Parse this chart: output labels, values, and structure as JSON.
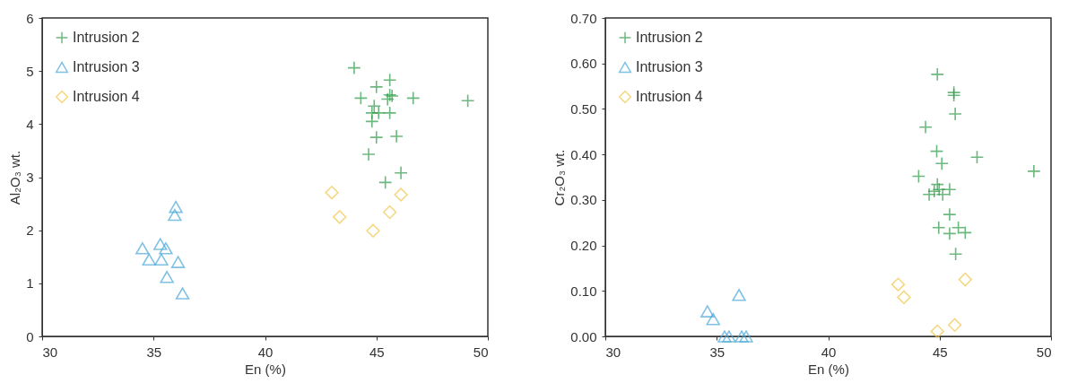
{
  "chart_data": [
    {
      "type": "scatter",
      "xlabel": "En (%)",
      "ylabel": "Al₂O₃ wt.",
      "xlim": [
        30,
        50
      ],
      "xticks": [
        30,
        35,
        40,
        45,
        50
      ],
      "ylim": [
        0,
        6
      ],
      "yticks": [
        0,
        1,
        2,
        3,
        4,
        5,
        6
      ],
      "grid": false,
      "legend": "top left",
      "series": [
        {
          "name": "Intrusion 2",
          "color": "#2e9b48",
          "marker": "cross",
          "x": [
            44.0,
            44.3,
            45.0,
            45.6,
            45.6,
            45.7,
            46.65,
            49.1,
            44.8,
            45.1,
            45.6,
            44.8,
            45.0,
            45.9,
            44.65,
            45.4,
            46.1,
            45.5,
            44.9
          ],
          "values": [
            5.06,
            4.49,
            4.7,
            4.83,
            4.55,
            4.53,
            4.49,
            4.44,
            4.21,
            4.21,
            4.21,
            4.05,
            3.75,
            3.77,
            3.43,
            2.9,
            3.08,
            4.47,
            4.34
          ]
        },
        {
          "name": "Intrusion 3",
          "color": "#4aa8d8",
          "marker": "triangle",
          "x": [
            36.0,
            35.95,
            34.5,
            34.8,
            35.3,
            35.55,
            35.35,
            36.1,
            35.6,
            36.3
          ],
          "values": [
            2.44,
            2.29,
            1.66,
            1.45,
            1.74,
            1.66,
            1.45,
            1.4,
            1.12,
            0.81
          ]
        },
        {
          "name": "Intrusion 4",
          "color": "#f0c850",
          "marker": "diamond",
          "x": [
            43.0,
            43.35,
            44.85,
            45.6,
            46.1
          ],
          "values": [
            2.71,
            2.25,
            1.99,
            2.34,
            2.67
          ]
        }
      ]
    },
    {
      "type": "scatter",
      "xlabel": "En (%)",
      "ylabel": "Cr₂O₃ wt.",
      "xlim": [
        30,
        50
      ],
      "xticks": [
        30,
        35,
        40,
        45,
        50
      ],
      "ylim": [
        0,
        0.7
      ],
      "yticks": [
        {
          "value": 0,
          "label": "0.00"
        },
        {
          "value": 0.1,
          "label": "0.10"
        },
        {
          "value": 0.2,
          "label": "0.20"
        },
        {
          "value": 0.3,
          "label": "0.30"
        },
        {
          "value": 0.4,
          "label": "0.40"
        },
        {
          "value": 0.5,
          "label": "0.50"
        },
        {
          "value": 0.6,
          "label": "0.60"
        },
        {
          "value": 0.7,
          "label": "0.70"
        }
      ],
      "grid": false,
      "legend": "top left",
      "series": [
        {
          "name": "Intrusion 2",
          "color": "#2e9b48",
          "marker": "cross",
          "x": [
            44.9,
            45.64,
            45.64,
            45.7,
            44.37,
            44.87,
            45.1,
            46.68,
            49.23,
            44.06,
            44.9,
            44.76,
            44.98,
            45.45,
            45.14,
            44.53,
            45.45,
            44.96,
            45.45,
            45.84,
            46.15,
            45.72
          ],
          "values": [
            0.576,
            0.536,
            0.53,
            0.489,
            0.46,
            0.407,
            0.38,
            0.394,
            0.363,
            0.352,
            0.334,
            0.319,
            0.323,
            0.323,
            0.312,
            0.312,
            0.268,
            0.239,
            0.226,
            0.239,
            0.228,
            0.181
          ]
        },
        {
          "name": "Intrusion 3",
          "color": "#4aa8d8",
          "marker": "triangle",
          "x": [
            36.0,
            34.58,
            34.84,
            35.35,
            35.55,
            36.12,
            36.32
          ],
          "values": [
            0.091,
            0.055,
            0.038,
            0.0,
            0.0,
            0.0,
            0.0
          ]
        },
        {
          "name": "Intrusion 4",
          "color": "#f0c850",
          "marker": "diamond",
          "x": [
            43.14,
            43.4,
            44.9,
            45.68,
            46.15
          ],
          "values": [
            0.114,
            0.086,
            0.011,
            0.025,
            0.125
          ]
        }
      ]
    }
  ]
}
